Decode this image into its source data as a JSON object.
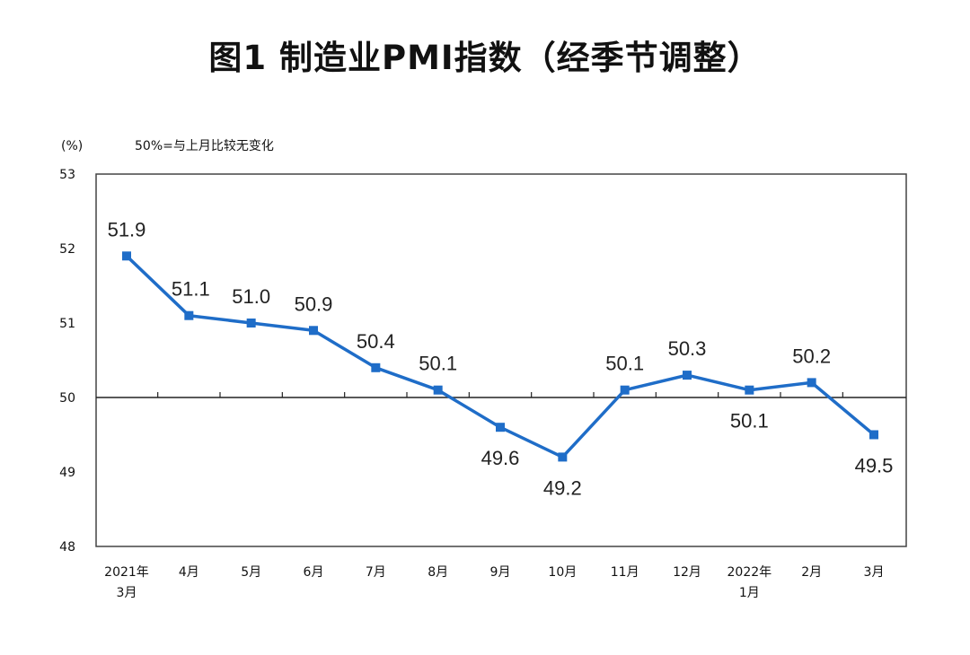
{
  "chart_data": {
    "type": "line",
    "title": "图1 制造业PMI指数（经季节调整）",
    "ylabel": "(%)",
    "annotation": "50%=与上月比较无变化",
    "ylim": [
      48,
      53
    ],
    "yticks": [
      "48",
      "49",
      "50",
      "51",
      "52",
      "53"
    ],
    "reference_line": 50,
    "categories": [
      [
        "2021年",
        "3月"
      ],
      [
        "4月"
      ],
      [
        "5月"
      ],
      [
        "6月"
      ],
      [
        "7月"
      ],
      [
        "8月"
      ],
      [
        "9月"
      ],
      [
        "10月"
      ],
      [
        "11月"
      ],
      [
        "12月"
      ],
      [
        "2022年",
        "1月"
      ],
      [
        "2月"
      ],
      [
        "3月"
      ]
    ],
    "series": [
      {
        "values": [
          51.9,
          51.1,
          51.0,
          50.9,
          50.4,
          50.1,
          49.6,
          49.2,
          50.1,
          50.3,
          50.1,
          50.2,
          49.5
        ],
        "labels": [
          "51.9",
          "51.1",
          "51.0",
          "50.9",
          "50.4",
          "50.1",
          "49.6",
          "49.2",
          "50.1",
          "50.3",
          "50.1",
          "50.2",
          "49.5"
        ],
        "color": "#1f6dc8"
      }
    ],
    "grid": false,
    "legend": "none"
  }
}
